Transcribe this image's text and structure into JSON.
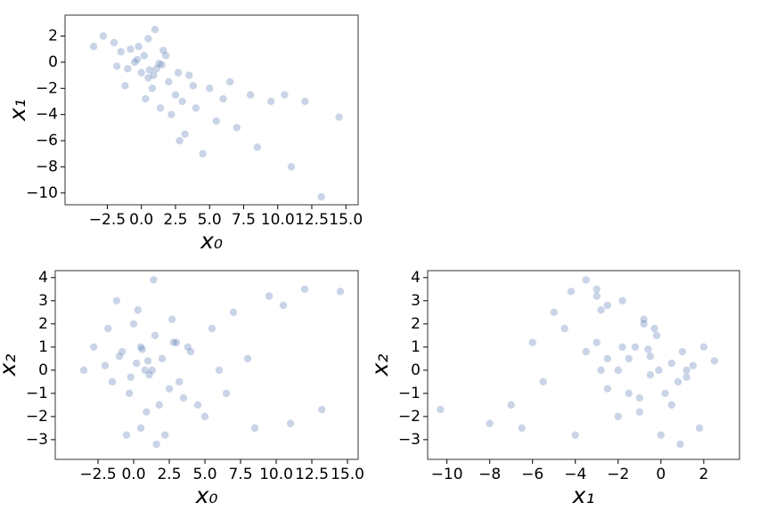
{
  "chart_data": [
    {
      "type": "scatter",
      "xlabel": "x₀",
      "ylabel": "x₁",
      "color": "#4c72b0",
      "x": [
        0.2,
        -0.8,
        1.1,
        0.5,
        -1.5,
        2.0,
        1.5,
        -0.3,
        0.8,
        2.5,
        -2.0,
        3.0,
        0.0,
        1.8,
        -1.0,
        3.5,
        4.0,
        5.0,
        5.5,
        6.5,
        7.0,
        8.0,
        8.5,
        9.5,
        10.5,
        11.0,
        12.0,
        13.2,
        14.5,
        -3.5,
        -2.8,
        1.0,
        0.5,
        2.2,
        3.2,
        -1.2,
        0.3,
        1.4,
        2.8,
        4.5,
        6.0,
        -0.5,
        1.6,
        2.7,
        -1.8,
        0.9,
        3.8,
        -0.2,
        1.3,
        0.6
      ],
      "values": [
        0.5,
        1.0,
        -0.5,
        -1.2,
        0.8,
        -1.5,
        -0.2,
        0.2,
        -2.0,
        -2.5,
        1.5,
        -3.0,
        -0.8,
        0.5,
        -0.5,
        -1.0,
        -3.5,
        -2.0,
        -4.5,
        -1.5,
        -5.0,
        -2.5,
        -6.5,
        -3.0,
        -2.5,
        -8.0,
        -3.0,
        -10.3,
        -4.2,
        1.2,
        2.0,
        2.5,
        1.8,
        -4.0,
        -5.5,
        -1.8,
        -2.8,
        -3.5,
        -6.0,
        -7.0,
        -2.8,
        0.0,
        0.9,
        -0.8,
        -0.3,
        -1.0,
        -1.8,
        1.2,
        -0.1,
        -0.6
      ],
      "xlim": [
        -5.6,
        15.9
      ],
      "ylim": [
        -10.9,
        3.6
      ],
      "xticks": [
        {
          "value": -2.5,
          "label": "−2.5"
        },
        {
          "value": 0,
          "label": "0.0"
        },
        2.5,
        {
          "value": 5,
          "label": "5.0"
        },
        7.5,
        {
          "value": 10,
          "label": "10.0"
        },
        12.5,
        {
          "value": 15,
          "label": "15.0"
        }
      ],
      "yticks": [
        {
          "value": -10,
          "label": "−10"
        },
        {
          "value": -8,
          "label": "−8"
        },
        {
          "value": -6,
          "label": "−6"
        },
        {
          "value": -4,
          "label": "−4"
        },
        {
          "value": -2,
          "label": "−2"
        },
        0,
        2
      ]
    },
    {
      "type": "scatter",
      "xlabel": "x₀",
      "ylabel": "x₂",
      "color": "#4c72b0",
      "x": [
        0.2,
        -0.8,
        1.1,
        0.5,
        -1.5,
        2.0,
        1.5,
        -0.3,
        0.8,
        2.5,
        -2.0,
        3.0,
        0.0,
        1.8,
        -1.0,
        3.5,
        4.0,
        5.0,
        5.5,
        6.5,
        7.0,
        8.0,
        8.5,
        9.5,
        10.5,
        11.0,
        12.0,
        13.2,
        14.5,
        -3.5,
        -2.8,
        1.0,
        0.5,
        2.2,
        3.2,
        -1.2,
        0.3,
        1.4,
        2.8,
        4.5,
        6.0,
        -0.5,
        1.6,
        2.7,
        -1.8,
        0.9,
        3.8,
        -0.2,
        1.3,
        0.6
      ],
      "values": [
        0.3,
        0.8,
        -0.2,
        1.0,
        -0.5,
        0.5,
        1.5,
        -1.0,
        0.0,
        -0.8,
        0.2,
        1.2,
        2.0,
        -1.5,
        0.6,
        -1.2,
        0.8,
        -2.0,
        1.8,
        -1.0,
        2.5,
        0.5,
        -2.5,
        3.2,
        2.8,
        -2.3,
        3.5,
        -1.7,
        3.4,
        0.0,
        1.0,
        0.4,
        -2.5,
        -2.8,
        -0.5,
        3.0,
        2.6,
        3.9,
        1.2,
        -1.5,
        0.0,
        -2.8,
        -3.2,
        2.2,
        1.8,
        -1.8,
        1.0,
        -0.3,
        0.0,
        0.9
      ],
      "xlim": [
        -5.5,
        15.75
      ],
      "ylim": [
        -3.85,
        4.3
      ],
      "xticks": [
        {
          "value": -2.5,
          "label": "−2.5"
        },
        {
          "value": 0,
          "label": "0.0"
        },
        2.5,
        {
          "value": 5,
          "label": "5.0"
        },
        7.5,
        {
          "value": 10,
          "label": "10.0"
        },
        12.5,
        {
          "value": 15,
          "label": "15.0"
        }
      ],
      "yticks": [
        {
          "value": -3,
          "label": "−3"
        },
        {
          "value": -2,
          "label": "−2"
        },
        {
          "value": -1,
          "label": "−1"
        },
        0,
        1,
        2,
        3,
        4
      ]
    },
    {
      "type": "scatter",
      "xlabel": "x₁",
      "ylabel": "x₂",
      "color": "#4c72b0",
      "x": [
        0.5,
        1.0,
        -0.5,
        -1.2,
        0.8,
        -1.5,
        -0.2,
        0.2,
        -2.0,
        -2.5,
        1.5,
        -3.0,
        -0.8,
        0.5,
        -0.5,
        -1.0,
        -3.5,
        -2.0,
        -4.5,
        -1.5,
        -5.0,
        -2.5,
        -6.5,
        -3.0,
        -2.5,
        -8.0,
        -3.0,
        -10.3,
        -4.2,
        1.2,
        2.0,
        2.5,
        1.8,
        -4.0,
        -5.5,
        -1.8,
        -2.8,
        -3.5,
        -6.0,
        -7.0,
        -2.8,
        0.0,
        0.9,
        -0.8,
        -0.3,
        -1.0,
        -1.8,
        1.2,
        -0.1,
        -0.6
      ],
      "values": [
        0.3,
        0.8,
        -0.2,
        1.0,
        -0.5,
        0.5,
        1.5,
        -1.0,
        0.0,
        -0.8,
        0.2,
        1.2,
        2.0,
        -1.5,
        0.6,
        -1.2,
        0.8,
        -2.0,
        1.8,
        -1.0,
        2.5,
        0.5,
        -2.5,
        3.2,
        2.8,
        -2.3,
        3.5,
        -1.7,
        3.4,
        0.0,
        1.0,
        0.4,
        -2.5,
        -2.8,
        -0.5,
        3.0,
        2.6,
        3.9,
        1.2,
        -1.5,
        0.0,
        -2.8,
        -3.2,
        2.2,
        1.8,
        -1.8,
        1.0,
        -0.3,
        0.0,
        0.9
      ],
      "xlim": [
        -10.9,
        3.67
      ],
      "ylim": [
        -3.85,
        4.3
      ],
      "xticks": [
        {
          "value": -10,
          "label": "−10"
        },
        {
          "value": -8,
          "label": "−8"
        },
        {
          "value": -6,
          "label": "−6"
        },
        {
          "value": -4,
          "label": "−4"
        },
        {
          "value": -2,
          "label": "−2"
        },
        0,
        2
      ],
      "yticks": [
        {
          "value": -3,
          "label": "−3"
        },
        {
          "value": -2,
          "label": "−2"
        },
        {
          "value": -1,
          "label": "−1"
        },
        0,
        1,
        2,
        3,
        4
      ]
    }
  ]
}
